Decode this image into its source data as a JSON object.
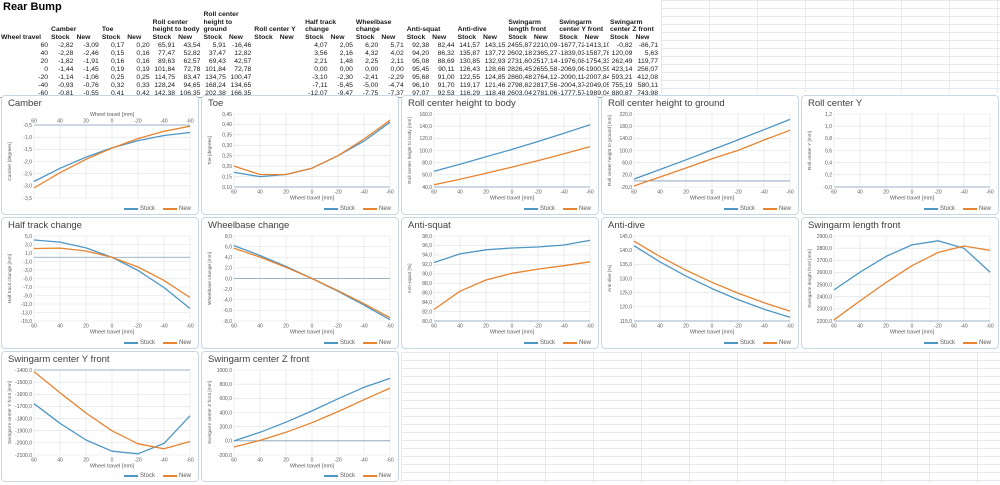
{
  "sheet": {
    "title": "Rear Bump"
  },
  "colors": {
    "stock": "#4E96C4",
    "new": "#E8832F",
    "grid": "#DCE2E8",
    "axis": "#7F9DB5",
    "text": "#595959",
    "panel_border": "#C9D7E4"
  },
  "legend": {
    "stock_label": "Stock",
    "new_label": "New"
  },
  "table": {
    "title": "Rear Bump",
    "row_header": "Wheel travel",
    "groups": [
      {
        "label": "Camber",
        "sub": [
          "Stock",
          "New"
        ]
      },
      {
        "label": "Toe",
        "sub": [
          "Stock",
          "New"
        ]
      },
      {
        "label": "Roll center height to body",
        "sub": [
          "Stock",
          "New"
        ]
      },
      {
        "label": "Roll center height to ground",
        "sub": [
          "Stock",
          "New"
        ]
      },
      {
        "label": "Roll center Y",
        "sub": [
          "Stock",
          "New"
        ]
      },
      {
        "label": "Half track change",
        "sub": [
          "Stock",
          "New"
        ]
      },
      {
        "label": "Wheelbase change",
        "sub": [
          "Stock",
          "New"
        ]
      },
      {
        "label": "Anti-squat",
        "sub": [
          "Stock",
          "New"
        ]
      },
      {
        "label": "Anti-dive",
        "sub": [
          "Stock",
          "New"
        ]
      },
      {
        "label": "Swingarm length front",
        "sub": [
          "Stock",
          "New"
        ]
      },
      {
        "label": "Swingarm center Y front",
        "sub": [
          "Stock",
          "New"
        ]
      },
      {
        "label": "Swingarm center Z front",
        "sub": [
          "Stock",
          "New"
        ]
      }
    ],
    "rows": [
      {
        "travel": "60",
        "values": [
          "-2,82",
          "-3,09",
          "0,17",
          "0,20",
          "65,91",
          "43,54",
          "5,91",
          "-16,46",
          "",
          "",
          "4,07",
          "2,05",
          "6,20",
          "5,71",
          "92,38",
          "82,44",
          "141,57",
          "143,15",
          "2455,87",
          "2210,09",
          "-1677,72",
          "-1413,10",
          "-0,82",
          "-86,71"
        ]
      },
      {
        "travel": "40",
        "values": [
          "-2,28",
          "-2,46",
          "0,15",
          "0,16",
          "77,47",
          "52,82",
          "37,47",
          "12,82",
          "",
          "",
          "3,56",
          "2,16",
          "4,32",
          "4,02",
          "94,20",
          "86,32",
          "135,87",
          "137,72",
          "2602,18",
          "2365,27",
          "-1839,03",
          "-1587,78",
          "120,09",
          "5,63"
        ]
      },
      {
        "travel": "20",
        "values": [
          "-1,82",
          "-1,91",
          "0,16",
          "0,16",
          "89,63",
          "62,57",
          "69,43",
          "42,57",
          "",
          "",
          "2,21",
          "1,48",
          "2,25",
          "2,11",
          "95,08",
          "88,69",
          "130,85",
          "132,93",
          "2731,60",
          "2517,14",
          "-1976,08",
          "-1754,33",
          "262,49",
          "119,77"
        ]
      },
      {
        "travel": "0",
        "values": [
          "-1,44",
          "-1,45",
          "0,19",
          "0,19",
          "101,84",
          "72,78",
          "101,84",
          "72,78",
          "",
          "",
          "0,00",
          "0,00",
          "0,00",
          "0,00",
          "95,45",
          "90,11",
          "126,43",
          "128,66",
          "2826,45",
          "2655,58",
          "-2069,06",
          "-1900,59",
          "423,14",
          "256,07"
        ]
      },
      {
        "travel": "-20",
        "values": [
          "-1,14",
          "-1,06",
          "0,25",
          "0,25",
          "114,75",
          "83,47",
          "134,75",
          "100,47",
          "",
          "",
          "-3,10",
          "-2,30",
          "-2,41",
          "-2,29",
          "95,68",
          "91,00",
          "122,55",
          "124,85",
          "2860,48",
          "2764,12",
          "-2090,11",
          "-2007,84",
          "593,21",
          "412,08"
        ]
      },
      {
        "travel": "-40",
        "values": [
          "-0,93",
          "-0,76",
          "0,32",
          "0,33",
          "128,24",
          "94,65",
          "168,24",
          "134,65",
          "",
          "",
          "-7,11",
          "-5,45",
          "-5,00",
          "-4,74",
          "96,10",
          "91,70",
          "119,17",
          "121,46",
          "2798,82",
          "2817,56",
          "-2004,37",
          "-2049,05",
          "755,19",
          "580,11"
        ]
      },
      {
        "travel": "-60",
        "values": [
          "-0,81",
          "-0,55",
          "0,41",
          "0,42",
          "142,38",
          "106,35",
          "202,38",
          "166,35",
          "",
          "",
          "-12,07",
          "-9,47",
          "-7,75",
          "-7,37",
          "97,07",
          "92,53",
          "116,29",
          "118,48",
          "2603,04",
          "2781,06",
          "-1777,57",
          "-1989,04",
          "880,87",
          "743,98"
        ]
      }
    ]
  },
  "chart_data": [
    {
      "id": "camber",
      "type": "line",
      "title": "Camber",
      "xlabel": "Wheel travel [mm]",
      "ylabel": "Camber [degrees]",
      "x": [
        60,
        40,
        20,
        0,
        -20,
        -40,
        -60
      ],
      "ymin": -3.5,
      "ymax": -0.5,
      "ystep": 0.5,
      "dec": 1,
      "xlabels": "top",
      "legend_pos": "bottom-right",
      "series": [
        {
          "name": "Stock",
          "values": [
            -2.82,
            -2.28,
            -1.82,
            -1.44,
            -1.14,
            -0.93,
            -0.81
          ]
        },
        {
          "name": "New",
          "values": [
            -3.09,
            -2.46,
            -1.91,
            -1.45,
            -1.06,
            -0.76,
            -0.55
          ]
        }
      ]
    },
    {
      "id": "toe",
      "type": "line",
      "title": "Toe",
      "xlabel": "Wheel travel [mm]",
      "ylabel": "Toe [degrees]",
      "x": [
        60,
        40,
        20,
        0,
        -20,
        -40,
        -60
      ],
      "ymin": 0.1,
      "ymax": 0.45,
      "ystep": 0.05,
      "dec": 2,
      "xlabels": "bottom",
      "legend_pos": "bottom-right",
      "series": [
        {
          "name": "Stock",
          "values": [
            0.17,
            0.15,
            0.16,
            0.19,
            0.25,
            0.32,
            0.41
          ]
        },
        {
          "name": "New",
          "values": [
            0.2,
            0.16,
            0.16,
            0.19,
            0.25,
            0.33,
            0.42
          ]
        }
      ]
    },
    {
      "id": "roll-center-height-to-body",
      "type": "line",
      "title": "Roll center height to body",
      "xlabel": "Wheel travel [mm]",
      "ylabel": "Roll center height to body [mm]",
      "x": [
        60,
        40,
        20,
        0,
        -20,
        -40,
        -60
      ],
      "ymin": 40,
      "ymax": 160,
      "ystep": 20,
      "dec": 1,
      "xlabels": "bottom",
      "legend_pos": "bottom-right",
      "series": [
        {
          "name": "Stock",
          "values": [
            65.91,
            77.47,
            89.63,
            101.84,
            114.75,
            128.24,
            142.38
          ]
        },
        {
          "name": "New",
          "values": [
            43.54,
            52.82,
            62.57,
            72.78,
            83.47,
            94.65,
            106.35
          ]
        }
      ]
    },
    {
      "id": "roll-center-height-to-ground",
      "type": "line",
      "title": "Roll center height to ground",
      "xlabel": "Wheel travel [mm]",
      "ylabel": "Roll center height to ground [mm]",
      "x": [
        60,
        40,
        20,
        0,
        -20,
        -40,
        -60
      ],
      "ymin": -20,
      "ymax": 220,
      "ystep": 40,
      "dec": 1,
      "xlabels": "bottom",
      "legend_pos": "bottom-right",
      "series": [
        {
          "name": "Stock",
          "values": [
            5.91,
            37.47,
            69.43,
            101.84,
            134.75,
            168.24,
            202.38
          ]
        },
        {
          "name": "New",
          "values": [
            -16.46,
            12.82,
            42.57,
            72.78,
            100.47,
            134.65,
            166.35
          ]
        }
      ]
    },
    {
      "id": "roll-center-y",
      "type": "line",
      "title": "Roll center Y",
      "xlabel": "Wheel travel [mm]",
      "ylabel": "Roll center Y [mm]",
      "x": [
        60,
        40,
        20,
        0,
        -20,
        -40,
        -60
      ],
      "ymin": 0.0,
      "ymax": 1.2,
      "ystep": 0.2,
      "dec": 1,
      "xlabels": "bottom",
      "legend_pos": "bottom-right",
      "series": [
        {
          "name": "Stock",
          "values": []
        },
        {
          "name": "New",
          "values": []
        }
      ]
    },
    {
      "id": "half-track-change",
      "type": "line",
      "title": "Half track change",
      "xlabel": "Wheel travel [mm]",
      "ylabel": "Half track change [mm]",
      "x": [
        60,
        40,
        20,
        0,
        -20,
        -40,
        -60
      ],
      "ymin": -15,
      "ymax": 5,
      "ystep": 2,
      "dec": 1,
      "xlabels": "bottom",
      "legend_pos": "bottom-right",
      "series": [
        {
          "name": "Stock",
          "values": [
            4.07,
            3.56,
            2.21,
            0.0,
            -3.1,
            -7.11,
            -12.07
          ]
        },
        {
          "name": "New",
          "values": [
            2.05,
            2.16,
            1.48,
            0.0,
            -2.3,
            -5.45,
            -9.47
          ]
        }
      ]
    },
    {
      "id": "wheelbase-change",
      "type": "line",
      "title": "Wheelbase change",
      "xlabel": "Wheel travel [mm]",
      "ylabel": "Wheelbase change [mm]",
      "x": [
        60,
        40,
        20,
        0,
        -20,
        -40,
        -60
      ],
      "ymin": -8,
      "ymax": 8,
      "ystep": 2,
      "dec": 1,
      "xlabels": "bottom",
      "legend_pos": "bottom-right",
      "series": [
        {
          "name": "Stock",
          "values": [
            6.2,
            4.32,
            2.25,
            0.0,
            -2.41,
            -5.0,
            -7.75
          ]
        },
        {
          "name": "New",
          "values": [
            5.71,
            4.02,
            2.11,
            0.0,
            -2.29,
            -4.74,
            -7.37
          ]
        }
      ]
    },
    {
      "id": "anti-squat",
      "type": "line",
      "title": "Anti-squat",
      "xlabel": "Wheel travel [mm]",
      "ylabel": "Anti-squat [%]",
      "x": [
        60,
        40,
        20,
        0,
        -20,
        -40,
        -60
      ],
      "ymin": 80,
      "ymax": 98,
      "ystep": 2,
      "dec": 1,
      "xlabels": "bottom",
      "legend_pos": "bottom-right",
      "series": [
        {
          "name": "Stock",
          "values": [
            92.38,
            94.2,
            95.08,
            95.45,
            95.68,
            96.1,
            97.07
          ]
        },
        {
          "name": "New",
          "values": [
            82.44,
            86.32,
            88.69,
            90.11,
            91.0,
            91.7,
            92.53
          ]
        }
      ]
    },
    {
      "id": "anti-dive",
      "type": "line",
      "title": "Anti-dive",
      "xlabel": "Wheel travel [mm]",
      "ylabel": "Anti-dive [%]",
      "x": [
        60,
        40,
        20,
        0,
        -20,
        -40,
        -60
      ],
      "ymin": 115,
      "ymax": 145,
      "ystep": 5,
      "dec": 1,
      "xlabels": "bottom",
      "legend_pos": "bottom-right",
      "series": [
        {
          "name": "Stock",
          "values": [
            141.57,
            135.87,
            130.85,
            126.43,
            122.55,
            119.17,
            116.29
          ]
        },
        {
          "name": "New",
          "values": [
            143.15,
            137.72,
            132.93,
            128.66,
            124.85,
            121.46,
            118.48
          ]
        }
      ]
    },
    {
      "id": "swingarm-length-front",
      "type": "line",
      "title": "Swingarm length front",
      "xlabel": "Wheel travel [mm]",
      "ylabel": "Swingarm length front [mm]",
      "x": [
        60,
        40,
        20,
        0,
        -20,
        -40,
        -60
      ],
      "ymin": 2200,
      "ymax": 2900,
      "ystep": 100,
      "dec": 1,
      "xlabels": "bottom",
      "legend_pos": "bottom-right",
      "series": [
        {
          "name": "Stock",
          "values": [
            2455.87,
            2602.18,
            2731.6,
            2826.45,
            2860.48,
            2798.82,
            2603.04
          ]
        },
        {
          "name": "New",
          "values": [
            2210.09,
            2365.27,
            2517.14,
            2655.58,
            2764.12,
            2817.56,
            2781.06
          ]
        }
      ]
    },
    {
      "id": "swingarm-center-y-front",
      "type": "line",
      "title": "Swingarm center Y front",
      "xlabel": "Wheel travel [mm]",
      "ylabel": "Swingarm center Y front [mm]",
      "x": [
        60,
        40,
        20,
        0,
        -20,
        -40,
        -60
      ],
      "ymin": -2100,
      "ymax": -1400,
      "ystep": 100,
      "dec": 1,
      "xlabels": "bottom",
      "legend_pos": "bottom-right",
      "series": [
        {
          "name": "Stock",
          "values": [
            -1677.72,
            -1839.03,
            -1976.08,
            -2069.06,
            -2090.11,
            -2004.37,
            -1777.57
          ]
        },
        {
          "name": "New",
          "values": [
            -1413.1,
            -1587.78,
            -1754.33,
            -1900.59,
            -2007.84,
            -2049.05,
            -1989.04
          ]
        }
      ]
    },
    {
      "id": "swingarm-center-z-front",
      "type": "line",
      "title": "Swingarm center Z front",
      "xlabel": "Wheel travel [mm]",
      "ylabel": "Swingarm center Z front [mm]",
      "x": [
        60,
        40,
        20,
        0,
        -20,
        -40,
        -60
      ],
      "ymin": -200,
      "ymax": 1000,
      "ystep": 200,
      "dec": 1,
      "xlabels": "bottom",
      "legend_pos": "bottom-right",
      "series": [
        {
          "name": "Stock",
          "values": [
            -0.82,
            120.09,
            262.49,
            423.14,
            593.21,
            755.19,
            880.87
          ]
        },
        {
          "name": "New",
          "values": [
            -86.71,
            5.63,
            119.77,
            256.07,
            412.08,
            580.11,
            743.98
          ]
        }
      ]
    }
  ]
}
